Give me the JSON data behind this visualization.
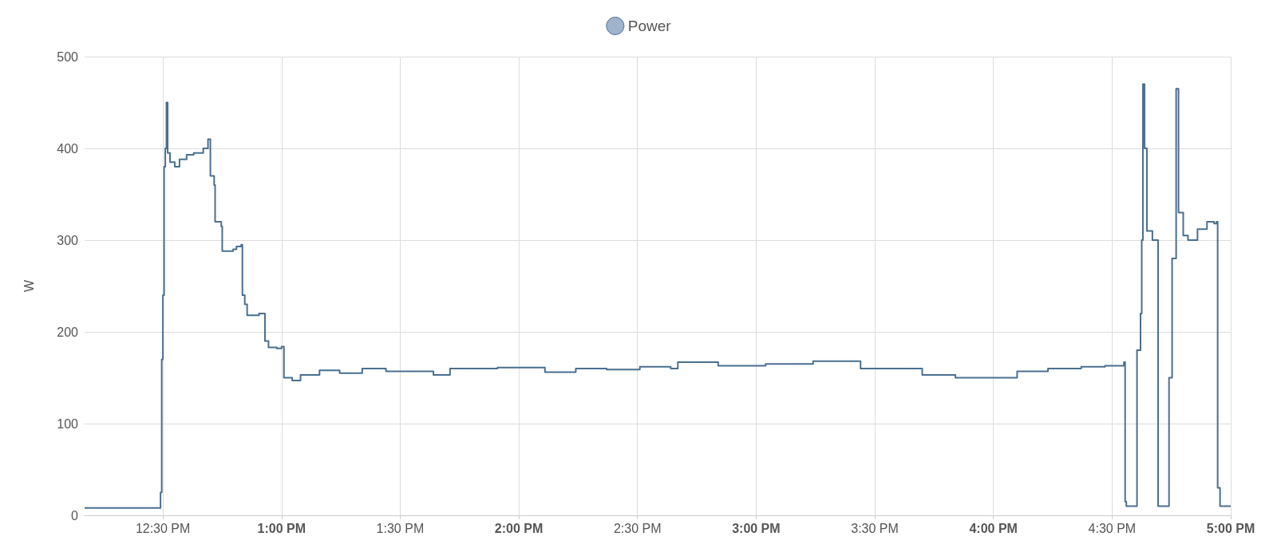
{
  "chart_data": {
    "type": "step",
    "ylabel": "W",
    "legend": "top",
    "grid": true,
    "marker": "none",
    "xlim": [
      12.17,
      17
    ],
    "ylim": [
      0,
      500
    ],
    "yticks": [
      0,
      100,
      200,
      300,
      400,
      500
    ],
    "xticks": [
      {
        "value": 12.5,
        "label": "12:30 PM"
      },
      {
        "value": 13,
        "label": "1:00 PM"
      },
      {
        "value": 13.5,
        "label": "1:30 PM"
      },
      {
        "value": 14,
        "label": "2:00 PM"
      },
      {
        "value": 14.5,
        "label": "2:30 PM"
      },
      {
        "value": 15,
        "label": "3:00 PM"
      },
      {
        "value": 15.5,
        "label": "3:30 PM"
      },
      {
        "value": 16,
        "label": "4:00 PM"
      },
      {
        "value": 16.5,
        "label": "4:30 PM"
      },
      {
        "value": 17,
        "label": "5:00 PM"
      }
    ],
    "series": [
      {
        "name": "Power",
        "color": "#4a6f8f",
        "x": [
          12.17,
          12.48,
          12.49,
          12.495,
          12.5,
          12.505,
          12.51,
          12.515,
          12.52,
          12.53,
          12.55,
          12.57,
          12.6,
          12.63,
          12.67,
          12.69,
          12.7,
          12.716,
          12.72,
          12.746,
          12.75,
          12.796,
          12.81,
          12.83,
          12.835,
          12.845,
          12.855,
          12.905,
          12.93,
          12.945,
          12.98,
          13.0,
          13.01,
          13.045,
          13.08,
          13.16,
          13.245,
          13.34,
          13.44,
          13.64,
          13.71,
          13.91,
          14.11,
          14.24,
          14.37,
          14.51,
          14.64,
          14.67,
          14.84,
          15.04,
          15.24,
          15.44,
          15.57,
          15.7,
          15.84,
          15.97,
          16.1,
          16.23,
          16.37,
          16.47,
          16.55,
          16.555,
          16.56,
          16.6,
          16.605,
          16.62,
          16.625,
          16.63,
          16.637,
          16.647,
          16.67,
          16.69,
          16.694,
          16.73,
          16.74,
          16.753,
          16.77,
          16.78,
          16.8,
          16.82,
          16.86,
          16.9,
          16.93,
          16.94,
          16.945,
          16.955,
          17.0
        ],
        "values": [
          8,
          8,
          25,
          170,
          240,
          380,
          400,
          450,
          395,
          385,
          380,
          388,
          393,
          395,
          400,
          410,
          370,
          360,
          320,
          315,
          288,
          290,
          293,
          295,
          240,
          230,
          218,
          220,
          190,
          183,
          182,
          184,
          150,
          147,
          153,
          158,
          155,
          160,
          157,
          153,
          160,
          161,
          156,
          160,
          159,
          162,
          160,
          167,
          163,
          165,
          168,
          160,
          160,
          153,
          150,
          150,
          157,
          160,
          162,
          163,
          167,
          15,
          10,
          10,
          180,
          220,
          300,
          470,
          400,
          310,
          300,
          300,
          10,
          10,
          150,
          280,
          465,
          330,
          305,
          300,
          312,
          320,
          318,
          320,
          30,
          10,
          10
        ]
      }
    ]
  }
}
